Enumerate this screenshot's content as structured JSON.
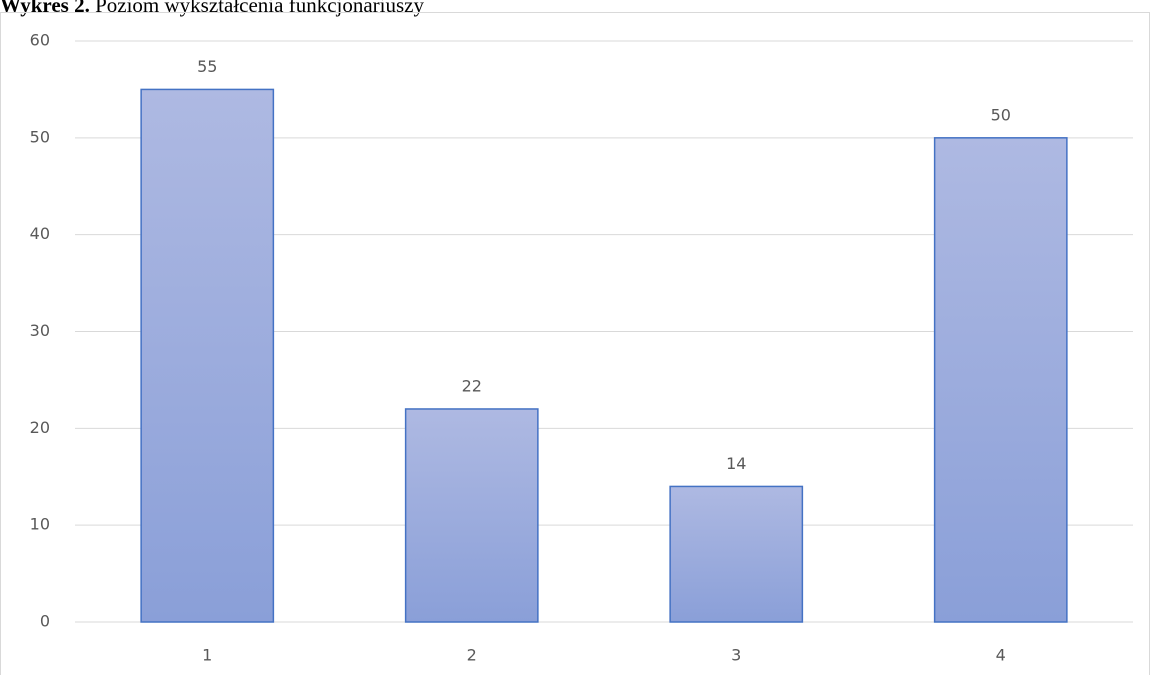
{
  "chart_data": {
    "type": "bar",
    "title_label": "Wykres 2.",
    "title": "Poziom wykształcenia funkcjonariuszy",
    "categories": [
      "1",
      "2",
      "3",
      "4"
    ],
    "values": [
      55,
      22,
      14,
      50
    ],
    "color": "#4472c4",
    "ylim": [
      0,
      60
    ],
    "yticks": [
      0,
      10,
      20,
      30,
      40,
      50,
      60
    ],
    "grid": true
  }
}
